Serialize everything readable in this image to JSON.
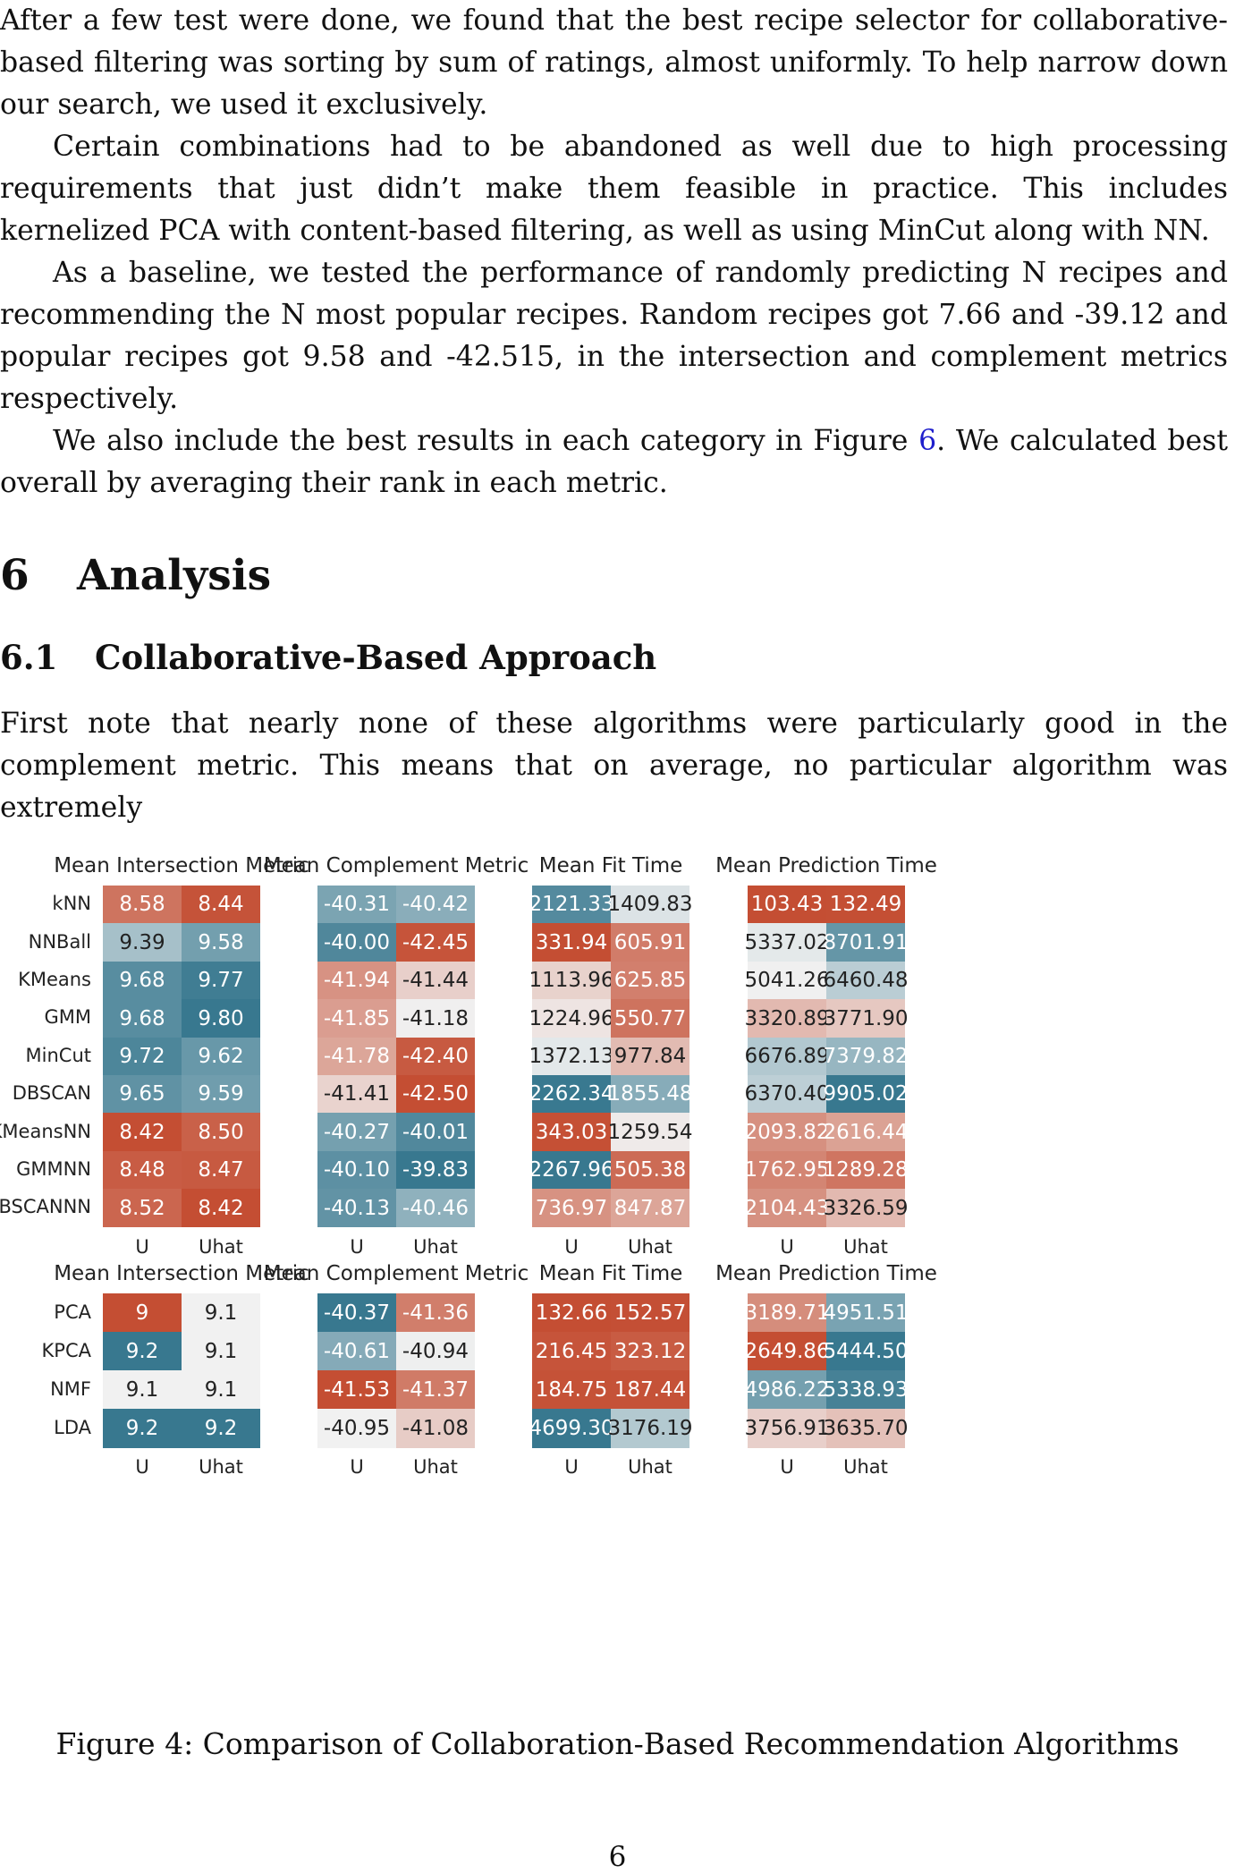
{
  "paragraphs_top": [
    {
      "text": "After a few test were done, we found that the best recipe selector for collaborative-based filtering was sorting by sum of ratings, almost uniformly. To help narrow down our search, we used it exclusively.",
      "indent": false
    },
    {
      "text": "Certain combinations had to be abandoned as well due to high processing requirements that just didn’t make them feasible in practice. This includes kernelized PCA with content-based filtering, as well as using MinCut along with NN.",
      "indent": true
    },
    {
      "text": "As a baseline, we tested the performance of randomly predicting N recipes and recommending the N most popular recipes. Random recipes got 7.66 and -39.12 and popular recipes got 9.58 and -42.515, in the intersection and complement metrics respectively.",
      "indent": true
    },
    {
      "pre": "We also include the best results in each category in Figure ",
      "ref": "6",
      "post": ". We calculated best overall by averaging their rank in each metric.",
      "indent": true
    }
  ],
  "section": {
    "number": "6",
    "title": "Analysis"
  },
  "subsection": {
    "number": "6.1",
    "title": "Collaborative-Based Approach"
  },
  "paragraph_after": "First note that nearly none of these algorithms were particularly good in the complement metric. This means that on average, no particular algorithm was extremely",
  "figure": {
    "caption": "Figure 4: Comparison of Collaboration-Based Recommendation Algorithms",
    "color_low": "#c44e33",
    "color_mid": "#f1f1f1",
    "color_high": "#38788f",
    "column_labels": [
      "U",
      "Uhat"
    ],
    "groups": [
      {
        "rows": [
          "kNN",
          "NNBall",
          "KMeans",
          "GMM",
          "MinCut",
          "DBSCAN",
          "KMeansNN",
          "GMMNN",
          "DBSCANNN"
        ],
        "heatmaps": [
          {
            "title": "Mean Intersection Metric",
            "higher_is_better": true,
            "cells": [
              [
                "8.58",
                "8.44"
              ],
              [
                "9.39",
                "9.58"
              ],
              [
                "9.68",
                "9.77"
              ],
              [
                "9.68",
                "9.80"
              ],
              [
                "9.72",
                "9.62"
              ],
              [
                "9.65",
                "9.59"
              ],
              [
                "8.42",
                "8.50"
              ],
              [
                "8.48",
                "8.47"
              ],
              [
                "8.52",
                "8.42"
              ]
            ]
          },
          {
            "title": "Mean Complement Metric",
            "higher_is_better": true,
            "cells": [
              [
                "-40.31",
                "-40.42"
              ],
              [
                "-40.00",
                "-42.45"
              ],
              [
                "-41.94",
                "-41.44"
              ],
              [
                "-41.85",
                "-41.18"
              ],
              [
                "-41.78",
                "-42.40"
              ],
              [
                "-41.41",
                "-42.50"
              ],
              [
                "-40.27",
                "-40.01"
              ],
              [
                "-40.10",
                "-39.83"
              ],
              [
                "-40.13",
                "-40.46"
              ]
            ]
          },
          {
            "title": "Mean Fit Time",
            "higher_is_better": true,
            "cells": [
              [
                "2121.33",
                "1409.83"
              ],
              [
                "331.94",
                "605.91"
              ],
              [
                "1113.96",
                "625.85"
              ],
              [
                "1224.96",
                "550.77"
              ],
              [
                "1372.13",
                "977.84"
              ],
              [
                "2262.34",
                "1855.48"
              ],
              [
                "343.03",
                "1259.54"
              ],
              [
                "2267.96",
                "505.38"
              ],
              [
                "736.97",
                "847.87"
              ]
            ]
          },
          {
            "title": "Mean Prediction Time",
            "higher_is_better": true,
            "cells": [
              [
                "103.43",
                "132.49"
              ],
              [
                "5337.02",
                "8701.91"
              ],
              [
                "5041.26",
                "6460.48"
              ],
              [
                "3320.89",
                "3771.90"
              ],
              [
                "6676.89",
                "7379.82"
              ],
              [
                "6370.40",
                "9905.02"
              ],
              [
                "2093.82",
                "2616.44"
              ],
              [
                "1762.95",
                "1289.28"
              ],
              [
                "2104.43",
                "3326.59"
              ]
            ]
          }
        ]
      },
      {
        "rows": [
          "PCA",
          "KPCA",
          "NMF",
          "LDA"
        ],
        "heatmaps": [
          {
            "title": "Mean Intersection Metric",
            "higher_is_better": true,
            "cells": [
              [
                "9",
                "9.1"
              ],
              [
                "9.2",
                "9.1"
              ],
              [
                "9.1",
                "9.1"
              ],
              [
                "9.2",
                "9.2"
              ]
            ]
          },
          {
            "title": "Mean Complement Metric",
            "higher_is_better": true,
            "cells": [
              [
                "-40.37",
                "-41.36"
              ],
              [
                "-40.61",
                "-40.94"
              ],
              [
                "-41.53",
                "-41.37"
              ],
              [
                "-40.95",
                "-41.08"
              ]
            ]
          },
          {
            "title": "Mean Fit Time",
            "higher_is_better": true,
            "cells": [
              [
                "132.66",
                "152.57"
              ],
              [
                "216.45",
                "323.12"
              ],
              [
                "184.75",
                "187.44"
              ],
              [
                "4699.30",
                "3176.19"
              ]
            ]
          },
          {
            "title": "Mean Prediction Time",
            "higher_is_better": true,
            "cells": [
              [
                "3189.71",
                "4951.51"
              ],
              [
                "2649.86",
                "5444.50"
              ],
              [
                "4986.22",
                "5338.93"
              ],
              [
                "3756.91",
                "3635.70"
              ]
            ]
          }
        ]
      }
    ]
  },
  "page_number": "6"
}
